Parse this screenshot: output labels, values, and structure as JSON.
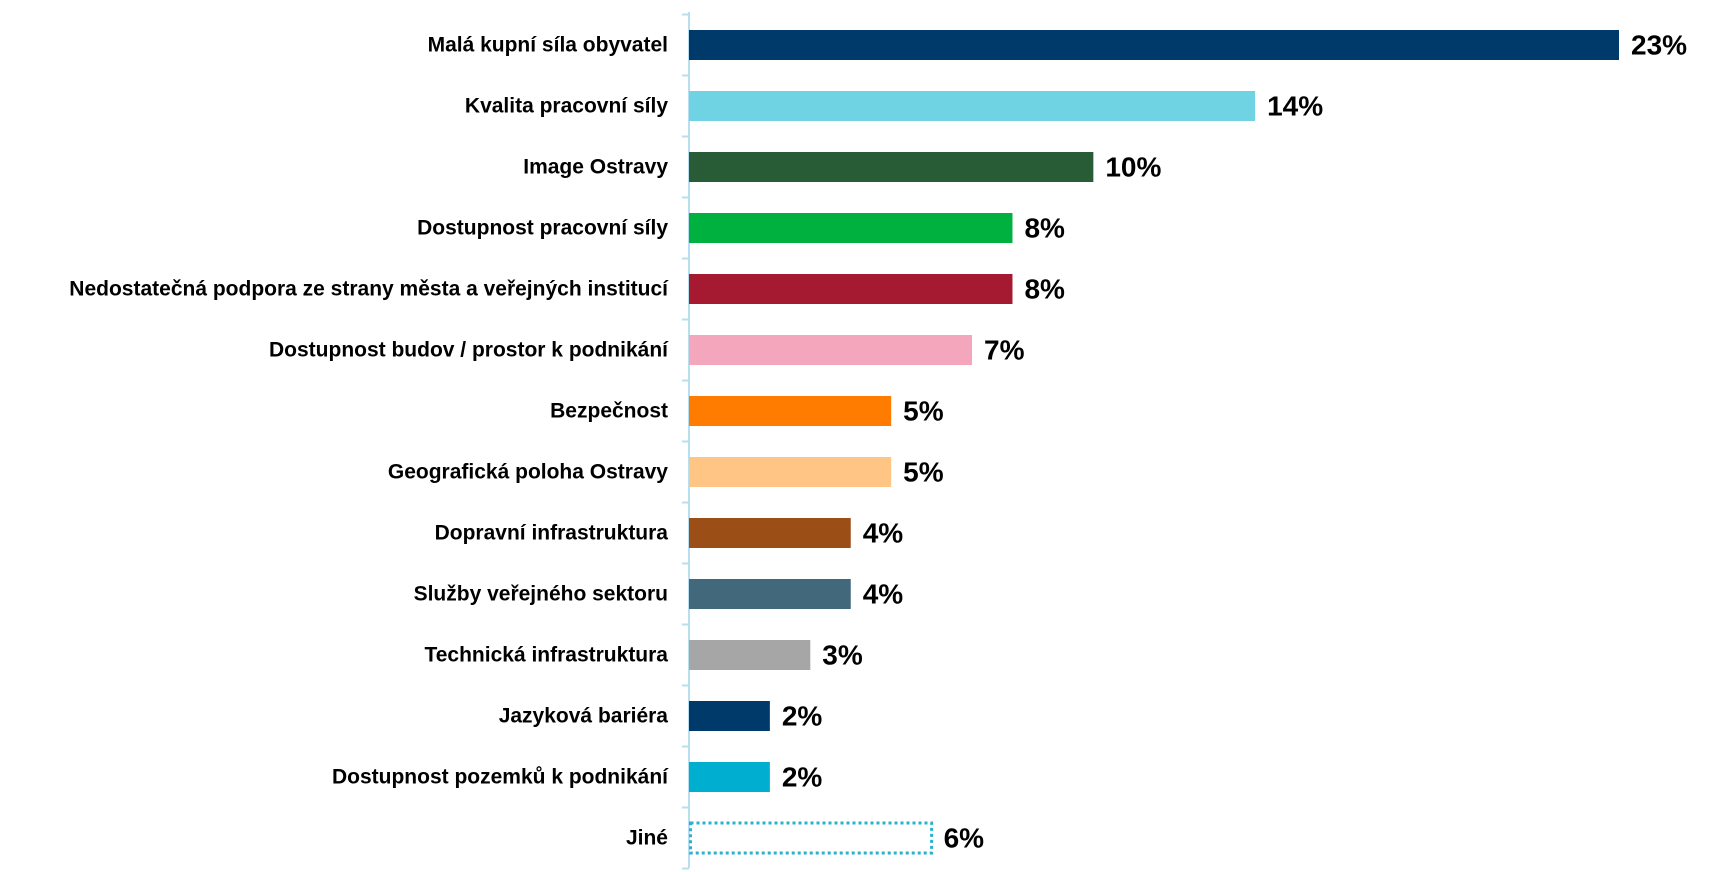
{
  "chart_data": {
    "type": "bar",
    "orientation": "horizontal",
    "categories": [
      "Malá kupní síla obyvatel",
      "Kvalita pracovní síly",
      "Image Ostravy",
      "Dostupnost pracovní síly",
      "Nedostatečná podpora ze strany města a veřejných institucí",
      "Dostupnost budov / prostor k podnikání",
      "Bezpečnost",
      "Geografická poloha Ostravy",
      "Dopravní infrastruktura",
      "Služby veřejného sektoru",
      "Technická infrastruktura",
      "Jazyková bariéra",
      "Dostupnost pozemků k podnikání",
      "Jiné"
    ],
    "values": [
      23,
      14,
      10,
      8,
      8,
      7,
      5,
      5,
      4,
      4,
      3,
      2,
      2,
      6
    ],
    "value_labels": [
      "23%",
      "14%",
      "10%",
      "8%",
      "8%",
      "7%",
      "5%",
      "5%",
      "4%",
      "4%",
      "3%",
      "2%",
      "2%",
      "6%"
    ],
    "colors": [
      "#003a6b",
      "#70d3e3",
      "#275c37",
      "#00b140",
      "#a51931",
      "#f4a6bd",
      "#ff7c00",
      "#ffc584",
      "#9b4f17",
      "#42687c",
      "#a6a6a6",
      "#003a6b",
      "#00aecf",
      "#2ab0d0"
    ],
    "styles": [
      "solid",
      "solid",
      "solid",
      "solid",
      "solid",
      "solid",
      "solid",
      "solid",
      "solid",
      "solid",
      "solid",
      "solid",
      "solid",
      "dotted"
    ]
  }
}
